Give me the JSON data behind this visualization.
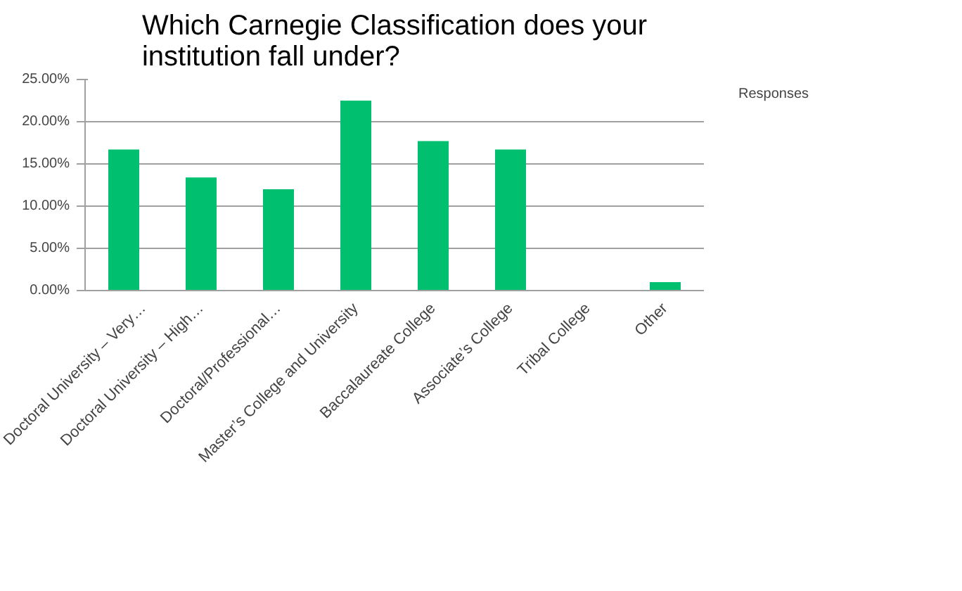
{
  "chart_data": {
    "type": "bar",
    "title": "Which Carnegie Classification does your\ninstitution fall under?",
    "categories": [
      "Doctoral University – Very…",
      "Doctoral University – High…",
      "Doctoral/Professional…",
      "Master’s College and University",
      "Baccalaureate College",
      "Associate’s College",
      "Tribal College",
      "Other"
    ],
    "series": [
      {
        "name": "Responses",
        "color": "#00bf6f",
        "values": [
          16.7,
          13.4,
          12.0,
          22.5,
          17.7,
          16.7,
          0,
          1.0
        ]
      }
    ],
    "ylim": [
      0,
      25
    ],
    "yticks": [
      {
        "value": 0,
        "label": "0.00%"
      },
      {
        "value": 5,
        "label": "5.00%"
      },
      {
        "value": 10,
        "label": "10.00%"
      },
      {
        "value": 15,
        "label": "15.00%"
      },
      {
        "value": 20,
        "label": "20.00%"
      },
      {
        "value": 25,
        "label": "25.00%"
      }
    ],
    "grid": "y",
    "legend": "right"
  }
}
